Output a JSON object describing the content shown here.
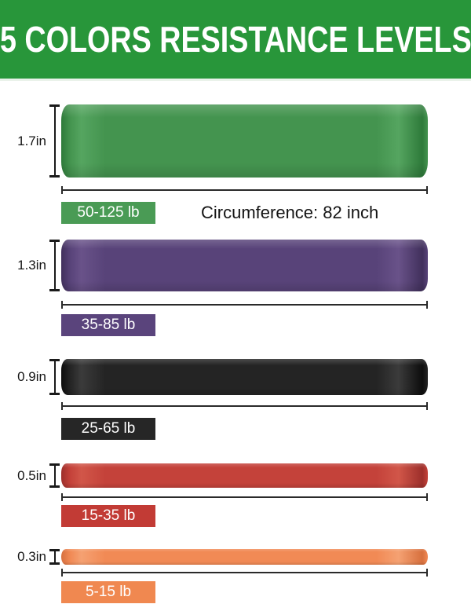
{
  "header": {
    "title": "5 COLORS RESISTANCE LEVELS",
    "bg_color": "#28963A",
    "text_color": "#FFFFFF"
  },
  "circumference_note": "Circumference: 82 inch",
  "measure_line_color": "#2A2A2A",
  "bands": [
    {
      "name": "green",
      "size": "1.7in",
      "weight": "50-125 lb",
      "color": "#44944F",
      "color_light": "#55A560",
      "color_dark": "#2E7A3A",
      "label_color": "#4A9B55"
    },
    {
      "name": "purple",
      "size": "1.3in",
      "weight": "35-85 lb",
      "color": "#584379",
      "color_light": "#695289",
      "color_dark": "#41305C",
      "label_color": "#5A447C"
    },
    {
      "name": "black",
      "size": "0.9in",
      "weight": "25-65 lb",
      "color": "#242424",
      "color_light": "#3B3B3B",
      "color_dark": "#0D0D0D",
      "label_color": "#262626"
    },
    {
      "name": "red",
      "size": "0.5in",
      "weight": "15-35 lb",
      "color": "#C4423A",
      "color_light": "#D15649",
      "color_dark": "#9D2F2B",
      "label_color": "#C23B35"
    },
    {
      "name": "orange",
      "size": "0.3in",
      "weight": "5-15 lb",
      "color": "#F18A55",
      "color_light": "#F5A172",
      "color_dark": "#D7703E",
      "label_color": "#F08850"
    }
  ]
}
